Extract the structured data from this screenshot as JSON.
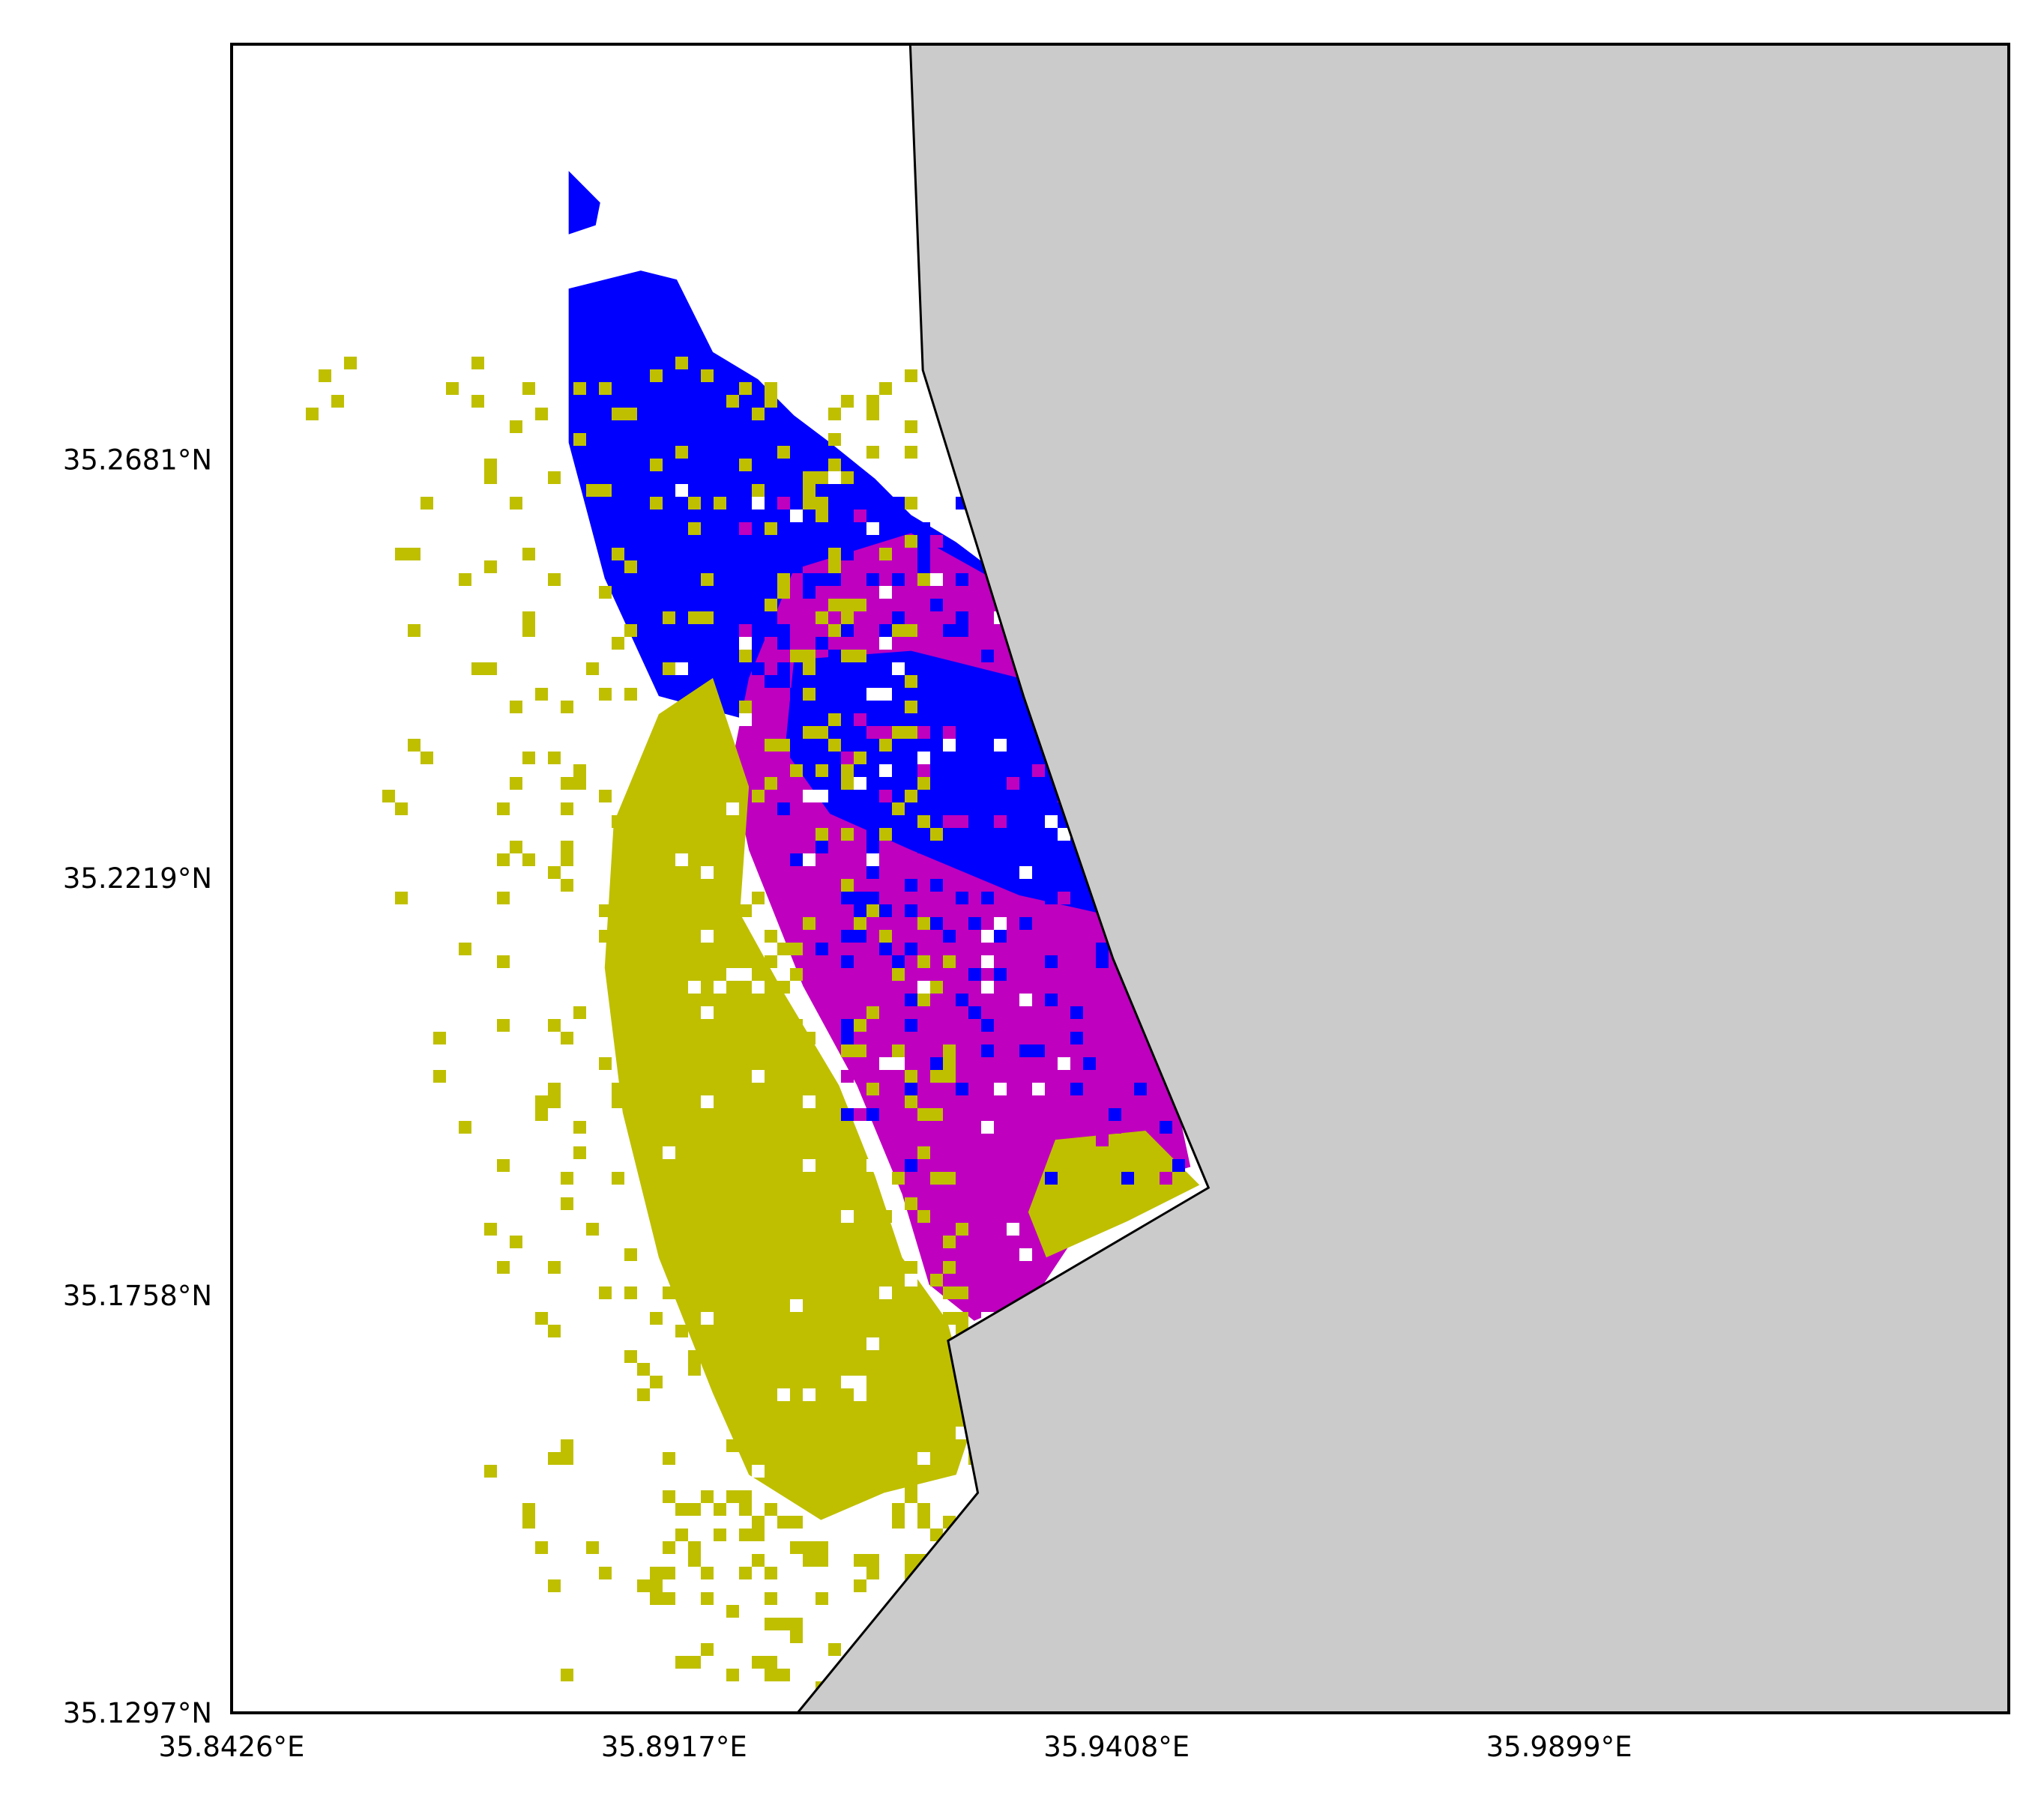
{
  "map": {
    "land_color": "#cbcbcb",
    "water_color": "#ffffff",
    "coast_line_color": "#000000",
    "extent": {
      "lon_min": 35.8426,
      "lon_max": 36.0398,
      "lat_min": 35.1297,
      "lat_max": 35.314
    },
    "coastline": [
      [
        35.9179,
        35.314
      ],
      [
        35.9193,
        35.278
      ],
      [
        35.9305,
        35.2419
      ],
      [
        35.9404,
        35.213
      ],
      [
        35.951,
        35.1877
      ],
      [
        35.9221,
        35.1708
      ],
      [
        35.9254,
        35.154
      ],
      [
        35.9054,
        35.1297
      ]
    ]
  },
  "axes": {
    "x_ticks": [
      {
        "value": 35.8426,
        "label": "35.8426°E"
      },
      {
        "value": 35.8917,
        "label": "35.8917°E"
      },
      {
        "value": 35.9408,
        "label": "35.9408°E"
      },
      {
        "value": 35.9899,
        "label": "35.9899°E"
      }
    ],
    "y_ticks": [
      {
        "value": 35.2681,
        "label": "35.2681°N"
      },
      {
        "value": 35.2219,
        "label": "35.2219°N"
      },
      {
        "value": 35.1758,
        "label": "35.1758°N"
      },
      {
        "value": 35.1297,
        "label": "35.1297°N"
      }
    ]
  },
  "overlay": {
    "classes": [
      {
        "key": "olive",
        "color": "#bfbf00"
      },
      {
        "key": "magenta",
        "color": "#bf00bf"
      },
      {
        "key": "blue",
        "color": "#0000ff"
      }
    ],
    "regions": [
      {
        "class": "blue",
        "poly": [
          [
            35.88,
            35.3
          ],
          [
            35.8835,
            35.2965
          ],
          [
            35.883,
            35.294
          ],
          [
            35.88,
            35.293
          ]
        ]
      },
      {
        "class": "blue",
        "poly": [
          [
            35.88,
            35.287
          ],
          [
            35.888,
            35.289
          ],
          [
            35.892,
            35.288
          ],
          [
            35.896,
            35.28
          ],
          [
            35.901,
            35.277
          ],
          [
            35.905,
            35.273
          ],
          [
            35.909,
            35.27
          ],
          [
            35.914,
            35.266
          ],
          [
            35.918,
            35.262
          ],
          [
            35.923,
            35.259
          ],
          [
            35.927,
            35.256
          ],
          [
            35.93,
            35.247
          ],
          [
            35.924,
            35.242
          ],
          [
            35.905,
            35.238
          ],
          [
            35.89,
            35.242
          ],
          [
            35.884,
            35.255
          ],
          [
            35.88,
            35.27
          ]
        ]
      },
      {
        "class": "magenta",
        "poly": [
          [
            35.905,
            35.256
          ],
          [
            35.918,
            35.26
          ],
          [
            35.927,
            35.255
          ],
          [
            35.932,
            35.243
          ],
          [
            35.94,
            35.218
          ],
          [
            35.946,
            35.204
          ],
          [
            35.949,
            35.19
          ],
          [
            35.942,
            35.188
          ],
          [
            35.936,
            35.182
          ],
          [
            35.932,
            35.176
          ],
          [
            35.925,
            35.173
          ],
          [
            35.92,
            35.177
          ],
          [
            35.917,
            35.187
          ],
          [
            35.912,
            35.199
          ],
          [
            35.906,
            35.21
          ],
          [
            35.9,
            35.225
          ],
          [
            35.898,
            35.234
          ],
          [
            35.9,
            35.244
          ]
        ]
      },
      {
        "class": "blue",
        "poly": [
          [
            35.905,
            35.246
          ],
          [
            35.918,
            35.247
          ],
          [
            35.93,
            35.244
          ],
          [
            35.936,
            35.23
          ],
          [
            35.939,
            35.218
          ],
          [
            35.93,
            35.22
          ],
          [
            35.918,
            35.225
          ],
          [
            35.909,
            35.229
          ],
          [
            35.904,
            35.236
          ]
        ]
      },
      {
        "class": "olive",
        "poly": [
          [
            35.896,
            35.244
          ],
          [
            35.9,
            35.232
          ],
          [
            35.899,
            35.218
          ],
          [
            35.904,
            35.209
          ],
          [
            35.91,
            35.199
          ],
          [
            35.914,
            35.189
          ],
          [
            35.917,
            35.18
          ],
          [
            35.922,
            35.173
          ],
          [
            35.925,
            35.162
          ],
          [
            35.923,
            35.156
          ],
          [
            35.915,
            35.154
          ],
          [
            35.908,
            35.151
          ],
          [
            35.9,
            35.156
          ],
          [
            35.896,
            35.165
          ],
          [
            35.89,
            35.18
          ],
          [
            35.886,
            35.196
          ],
          [
            35.884,
            35.212
          ],
          [
            35.885,
            35.228
          ],
          [
            35.89,
            35.24
          ]
        ]
      },
      {
        "class": "olive",
        "poly": [
          [
            35.934,
            35.193
          ],
          [
            35.944,
            35.194
          ],
          [
            35.95,
            35.188
          ],
          [
            35.942,
            35.184
          ],
          [
            35.933,
            35.18
          ],
          [
            35.931,
            35.185
          ]
        ]
      }
    ],
    "scatter_seed": 7
  }
}
